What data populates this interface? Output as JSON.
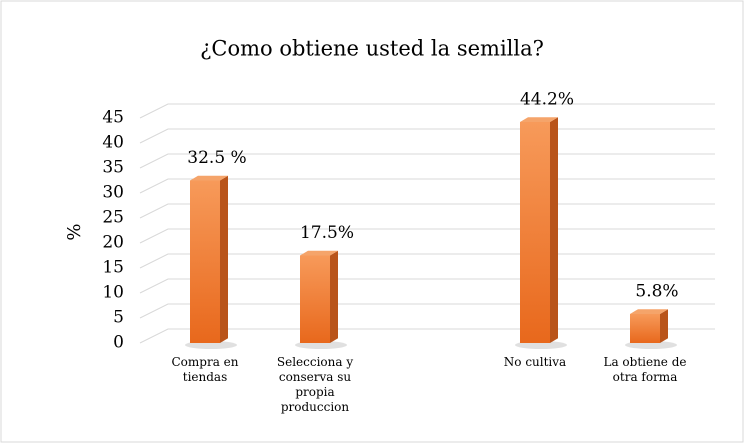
{
  "chart_data": {
    "type": "bar",
    "title": "¿Como obtiene usted la semilla?",
    "y_label": "%",
    "categories": [
      "Compra en tiendas",
      "Selecciona y conserva su propia produccion",
      null,
      "No cultiva",
      "La obtiene de otra forma"
    ],
    "values": [
      32.5,
      17.5,
      null,
      44.2,
      5.8
    ],
    "value_labels": [
      "32.5 %",
      "17.5%",
      null,
      "44.2%",
      "5.8%"
    ],
    "color": "#ed7d31",
    "ylim": [
      0,
      45
    ],
    "yticks": [
      0,
      5,
      10,
      15,
      20,
      25,
      30,
      35,
      40,
      45
    ],
    "grid": true
  }
}
